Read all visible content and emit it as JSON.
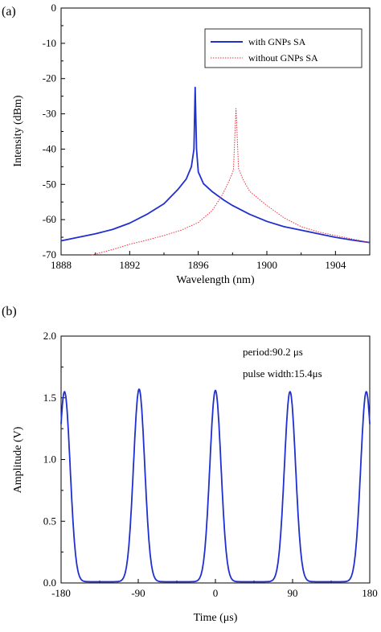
{
  "chart_data": [
    {
      "type": "line",
      "panel_label": "(a)",
      "xlabel": "Wavelength (nm)",
      "ylabel": "Intensity (dBm)",
      "xlim": [
        1888,
        1906
      ],
      "ylim": [
        -70,
        0
      ],
      "xticks": [
        1888,
        1892,
        1896,
        1900,
        1904
      ],
      "yticks": [
        0,
        -10,
        -20,
        -30,
        -40,
        -50,
        -60,
        -70
      ],
      "xtick_labels": [
        "1888",
        "1892",
        "1896",
        "1900",
        "1904"
      ],
      "ytick_labels": [
        "0",
        "-10",
        "-20",
        "-30",
        "-40",
        "-50",
        "-60",
        "-70"
      ],
      "grid": false,
      "legend_position": "top-right",
      "series": [
        {
          "name": "with GNPs SA",
          "color": "#1f2fd0",
          "style": "solid",
          "x": [
            1888,
            1889,
            1890,
            1891,
            1892,
            1893,
            1894,
            1894.8,
            1895.3,
            1895.6,
            1895.75,
            1895.82,
            1895.9,
            1896.0,
            1896.3,
            1896.8,
            1897.5,
            1898,
            1899,
            1900,
            1901,
            1902,
            1903,
            1904,
            1905,
            1906
          ],
          "y": [
            -66,
            -65,
            -64,
            -62.8,
            -61,
            -58.5,
            -55.5,
            -51.5,
            -48.5,
            -45,
            -40,
            -22.5,
            -40,
            -46.5,
            -49.8,
            -52,
            -54.5,
            -56,
            -58.5,
            -60.5,
            -62,
            -63,
            -64,
            -65,
            -65.8,
            -66.5
          ]
        },
        {
          "name": "without GNPs SA",
          "color": "#e8323c",
          "style": "dotted",
          "x": [
            1889.8,
            1891,
            1892,
            1893,
            1894,
            1895,
            1896,
            1896.8,
            1897.4,
            1897.8,
            1898.05,
            1898.2,
            1898.35,
            1898.6,
            1899,
            1900,
            1901,
            1902,
            1903,
            1904,
            1905,
            1906
          ],
          "y": [
            -70,
            -68.5,
            -67,
            -65.8,
            -64.5,
            -63,
            -60.8,
            -57.5,
            -53,
            -49,
            -46,
            -28.5,
            -45.5,
            -48.5,
            -52,
            -56,
            -59.5,
            -62,
            -63.5,
            -64.5,
            -65.5,
            -66.5
          ]
        }
      ]
    },
    {
      "type": "line",
      "panel_label": "(b)",
      "xlabel": "Time (μs)",
      "ylabel": "Amplitude (V)",
      "xlim": [
        -180,
        180
      ],
      "ylim": [
        0,
        2.0
      ],
      "xticks": [
        -180,
        -90,
        0,
        90,
        180
      ],
      "yticks": [
        0.0,
        0.5,
        1.0,
        1.5,
        2.0
      ],
      "xtick_labels": [
        "-180",
        "-90",
        "0",
        "90",
        "180"
      ],
      "ytick_labels": [
        "0.0",
        "0.5",
        "1.0",
        "1.5",
        "2.0"
      ],
      "grid": false,
      "annotations": [
        "period:90.2 μs",
        "pulse width:15.4μs"
      ],
      "series": [
        {
          "color": "#1f2fd0",
          "style": "solid",
          "pulse_centers": [
            -176,
            -89,
            0,
            87,
            176
          ],
          "pulse_peaks": [
            1.54,
            1.56,
            1.55,
            1.54,
            1.54
          ],
          "pulse_fwhm": 15.4
        }
      ]
    }
  ]
}
